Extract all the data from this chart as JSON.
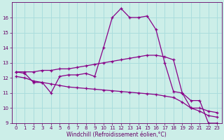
{
  "xlabel": "Windchill (Refroidissement éolien,°C)",
  "background_color": "#cceee8",
  "line_color": "#880088",
  "hours": [
    0,
    1,
    2,
    3,
    4,
    5,
    6,
    7,
    8,
    9,
    10,
    11,
    12,
    13,
    14,
    15,
    16,
    17,
    18,
    19,
    20,
    21,
    22,
    23
  ],
  "temp": [
    12.4,
    12.3,
    11.7,
    11.7,
    11.0,
    12.1,
    12.2,
    12.2,
    12.3,
    12.1,
    14.0,
    16.0,
    16.6,
    16.0,
    16.0,
    16.1,
    15.2,
    13.0,
    11.1,
    11.0,
    10.5,
    10.5,
    9.0,
    9.0
  ],
  "trend1": [
    12.4,
    12.4,
    12.4,
    12.5,
    12.5,
    12.6,
    12.6,
    12.7,
    12.8,
    12.9,
    13.0,
    13.1,
    13.2,
    13.3,
    13.4,
    13.5,
    13.5,
    13.4,
    13.2,
    11.0,
    10.0,
    10.0,
    9.8,
    9.7
  ],
  "trend2": [
    12.1,
    12.0,
    11.8,
    11.7,
    11.6,
    11.5,
    11.4,
    11.35,
    11.3,
    11.25,
    11.2,
    11.15,
    11.1,
    11.05,
    11.0,
    10.95,
    10.9,
    10.8,
    10.7,
    10.4,
    10.0,
    9.8,
    9.5,
    9.4
  ],
  "ylim": [
    9,
    17
  ],
  "yticks": [
    9,
    10,
    11,
    12,
    13,
    14,
    15,
    16
  ],
  "xlim": [
    -0.5,
    23.5
  ],
  "xticks": [
    0,
    1,
    2,
    3,
    4,
    5,
    6,
    7,
    8,
    9,
    10,
    11,
    12,
    13,
    14,
    15,
    16,
    17,
    18,
    19,
    20,
    21,
    22,
    23
  ],
  "grid_color": "#aadddd",
  "marker": "+",
  "markersize": 3.5,
  "linewidth": 0.9,
  "font_color": "#660066",
  "tick_fontsize": 5,
  "xlabel_fontsize": 5.5
}
